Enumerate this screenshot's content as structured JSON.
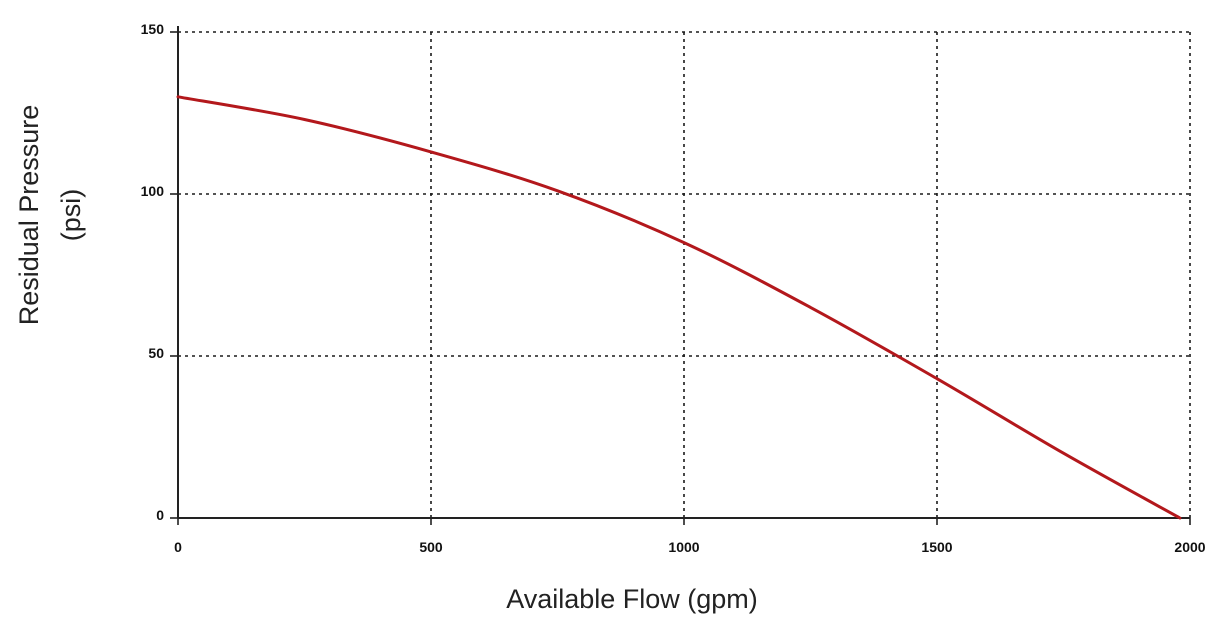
{
  "chart_data": {
    "type": "line",
    "xlabel": "Available Flow (gpm)",
    "ylabel_line1": "Residual Pressure",
    "ylabel_line2": "(psi)",
    "xlim": [
      0,
      2000
    ],
    "ylim": [
      0,
      150
    ],
    "x_ticks": [
      0,
      500,
      1000,
      1500,
      2000
    ],
    "y_ticks": [
      0,
      50,
      100,
      150
    ],
    "x_tick_labels": [
      "0",
      "500",
      "1000",
      "1500",
      "2000"
    ],
    "y_tick_labels": [
      "0",
      "50",
      "100",
      "150"
    ],
    "grid": true,
    "series": [
      {
        "color": "#b3181c",
        "x": [
          0,
          250,
          500,
          750,
          1000,
          1250,
          1500,
          1750,
          1980
        ],
        "y": [
          130,
          123,
          113,
          101,
          85,
          65,
          43,
          20,
          0
        ]
      }
    ]
  }
}
